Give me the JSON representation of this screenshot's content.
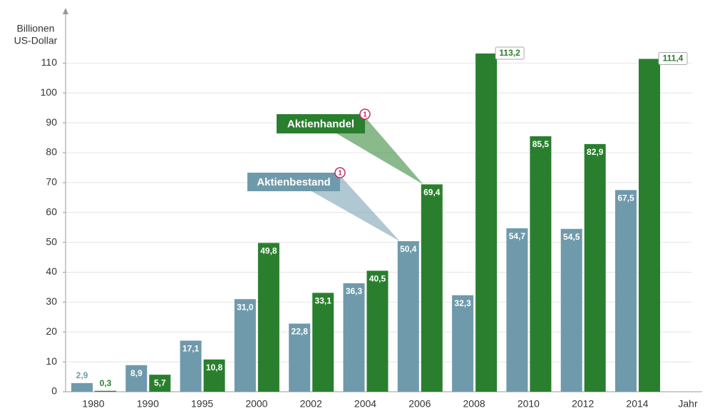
{
  "chart_data": {
    "type": "bar",
    "y_label": [
      "Billionen",
      "US-Dollar"
    ],
    "x_label": "Jahr",
    "categories": [
      "1980",
      "1990",
      "1995",
      "2000",
      "2002",
      "2004",
      "2006",
      "2008",
      "2010",
      "2012",
      "2014"
    ],
    "series": [
      {
        "name": "Aktienbestand",
        "note": "1",
        "color": "#6f9aab",
        "values": [
          2.9,
          8.9,
          17.1,
          31.0,
          22.8,
          36.3,
          50.4,
          32.3,
          54.7,
          54.5,
          67.5
        ],
        "value_labels": [
          "2,9",
          "8,9",
          "17,1",
          "31,0",
          "22,8",
          "36,3",
          "50,4",
          "32,3",
          "54,7",
          "54,5",
          "67,5"
        ]
      },
      {
        "name": "Aktienhandel",
        "note": "1",
        "color": "#2a7f2e",
        "values": [
          0.3,
          5.7,
          10.8,
          49.8,
          33.1,
          40.5,
          69.4,
          113.2,
          85.5,
          82.9,
          111.4
        ],
        "value_labels": [
          "0,3",
          "5,7",
          "10,8",
          "49,8",
          "33,1",
          "40,5",
          "69,4",
          "113,2",
          "85,5",
          "82,9",
          "111,4"
        ]
      }
    ],
    "ylim": [
      0,
      128
    ],
    "yticks": [
      0,
      10,
      20,
      30,
      40,
      50,
      60,
      70,
      80,
      90,
      100,
      110
    ],
    "grid": true
  }
}
